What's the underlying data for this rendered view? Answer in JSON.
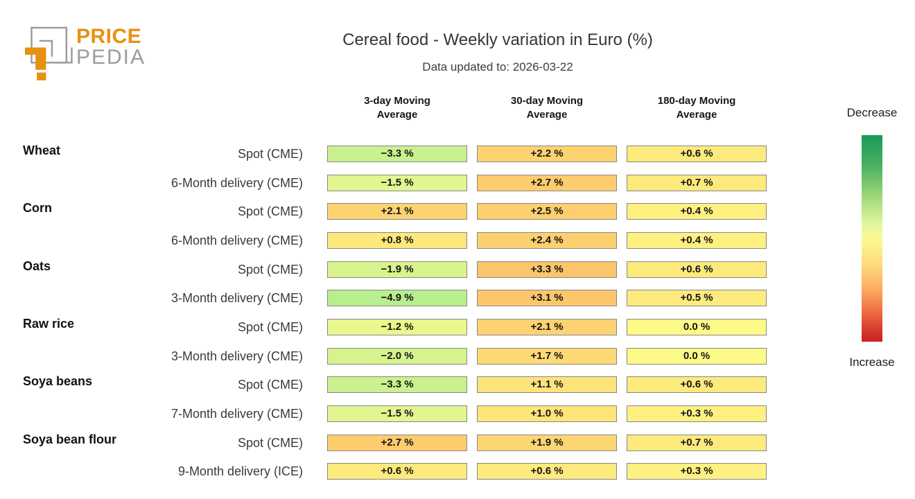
{
  "logo": {
    "line1": "PRICE",
    "line2": "PEDIA"
  },
  "header": {
    "title": "Cereal food - Weekly variation in Euro (%)",
    "subtitle": "Data updated to: 2026-03-22"
  },
  "legend": {
    "top_label": "Decrease",
    "bottom_label": "Increase",
    "stops": [
      {
        "c": "#169a58",
        "p": 0
      },
      {
        "c": "#4db061",
        "p": 15
      },
      {
        "c": "#a0d87b",
        "p": 30
      },
      {
        "c": "#e7f79d",
        "p": 44
      },
      {
        "c": "#fdf88f",
        "p": 51
      },
      {
        "c": "#fdd97d",
        "p": 63
      },
      {
        "c": "#fca95f",
        "p": 75
      },
      {
        "c": "#ec6a41",
        "p": 86
      },
      {
        "c": "#d3372c",
        "p": 95
      },
      {
        "c": "#cc2027",
        "p": 100
      }
    ]
  },
  "colors": {
    "accent_orange": "#E8910F",
    "logo_gray": "#9B9B9B",
    "cell_border": "#878787"
  },
  "chart_data": {
    "type": "heatmap",
    "title": "Cereal food - Weekly variation in Euro (%)",
    "subtitle": "Data updated to: 2026-03-22",
    "value_unit": "%",
    "columns": [
      "3-day Moving\nAverage",
      "30-day Moving\nAverage",
      "180-day Moving\nAverage"
    ],
    "legend_labels": {
      "decrease": "Decrease",
      "increase": "Increase"
    },
    "rows": [
      {
        "group": "Wheat",
        "label": "Spot (CME)",
        "values": [
          -3.3,
          2.2,
          0.6
        ],
        "display": [
          "−3.3 %",
          "+2.2 %",
          "+0.6 %"
        ],
        "colors": [
          "#c9f18d",
          "#fdd271",
          "#fdea7d"
        ]
      },
      {
        "group": "",
        "label": "6-Month delivery (CME)",
        "values": [
          -1.5,
          2.7,
          0.7
        ],
        "display": [
          "−1.5 %",
          "+2.7 %",
          "+0.7 %"
        ],
        "colors": [
          "#e1f590",
          "#fdcc6d",
          "#fde97c"
        ]
      },
      {
        "group": "Corn",
        "label": "Spot (CME)",
        "values": [
          2.1,
          2.5,
          0.4
        ],
        "display": [
          "+2.1 %",
          "+2.5 %",
          "+0.4 %"
        ],
        "colors": [
          "#fdd372",
          "#fdcf6f",
          "#fef081"
        ]
      },
      {
        "group": "",
        "label": "6-Month delivery (CME)",
        "values": [
          0.8,
          2.4,
          0.4
        ],
        "display": [
          "+0.8 %",
          "+2.4 %",
          "+0.4 %"
        ],
        "colors": [
          "#fde87c",
          "#fdd06f",
          "#fef081"
        ]
      },
      {
        "group": "Oats",
        "label": "Spot (CME)",
        "values": [
          -1.9,
          3.3,
          0.6
        ],
        "display": [
          "−1.9 %",
          "+3.3 %",
          "+0.6 %"
        ],
        "colors": [
          "#d9f48e",
          "#fcc56a",
          "#fdea7d"
        ]
      },
      {
        "group": "",
        "label": "3-Month delivery (CME)",
        "values": [
          -4.9,
          3.1,
          0.5
        ],
        "display": [
          "−4.9 %",
          "+3.1 %",
          "+0.5 %"
        ],
        "colors": [
          "#b7ee8e",
          "#fcc76b",
          "#feeb7e"
        ]
      },
      {
        "group": "Raw rice",
        "label": "Spot (CME)",
        "values": [
          -1.2,
          2.1,
          0.0
        ],
        "display": [
          "−1.2 %",
          "+2.1 %",
          "0.0 %"
        ],
        "colors": [
          "#e9f78c",
          "#fdd372",
          "#fdfa87"
        ]
      },
      {
        "group": "",
        "label": "3-Month delivery (CME)",
        "values": [
          -2.0,
          1.7,
          0.0
        ],
        "display": [
          "−2.0 %",
          "+1.7 %",
          "0.0 %"
        ],
        "colors": [
          "#d7f38e",
          "#fdd976",
          "#fdfa87"
        ]
      },
      {
        "group": "Soya beans",
        "label": "Spot (CME)",
        "values": [
          -3.3,
          1.1,
          0.6
        ],
        "display": [
          "−3.3 %",
          "+1.1 %",
          "+0.6 %"
        ],
        "colors": [
          "#c9f18d",
          "#fde37a",
          "#fdea7d"
        ]
      },
      {
        "group": "",
        "label": "7-Month delivery (CME)",
        "values": [
          -1.5,
          1.0,
          0.3
        ],
        "display": [
          "−1.5 %",
          "+1.0 %",
          "+0.3 %"
        ],
        "colors": [
          "#e1f590",
          "#fde47b",
          "#fef182"
        ]
      },
      {
        "group": "Soya bean flour",
        "label": "Spot (CME)",
        "values": [
          2.7,
          1.9,
          0.7
        ],
        "display": [
          "+2.7 %",
          "+1.9 %",
          "+0.7 %"
        ],
        "colors": [
          "#fdcc6d",
          "#fdd674",
          "#fde97c"
        ]
      },
      {
        "group": "",
        "label": "9-Month delivery (ICE)",
        "values": [
          0.6,
          0.6,
          0.3
        ],
        "display": [
          "+0.6 %",
          "+0.6 %",
          "+0.3 %"
        ],
        "colors": [
          "#fdea7d",
          "#fdea7d",
          "#fef182"
        ]
      }
    ]
  }
}
